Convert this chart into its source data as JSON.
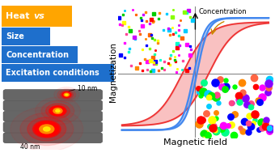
{
  "heat_vs_label": "Heat vs",
  "items": [
    "Size",
    "Concentration",
    "Excitation conditions"
  ],
  "orange_color": "#FFA500",
  "blue_color": "#1E6FCC",
  "size_label_10nm": "10 nm",
  "size_label_40nm": "40 nm",
  "xlabel": "Magnetic field",
  "ylabel": "Magnetization",
  "concentration_label": "Concentration",
  "bg_color": "#FFFFFF",
  "red_loop_color": "#EE3333",
  "red_loop_alpha": 0.3,
  "blue_curve_color": "#4488EE",
  "small_dot_colors": [
    "#FF00FF",
    "#FFFF00",
    "#00CC00",
    "#FF0000",
    "#00CCFF",
    "#FF8800",
    "#CC00FF",
    "#0000FF",
    "#FF4499",
    "#88FF00",
    "#FF6600",
    "#00FFCC"
  ],
  "large_dot_colors": [
    "#FF0000",
    "#00EE00",
    "#0000FF",
    "#FF00FF",
    "#00CCFF",
    "#FFFF00",
    "#FF8800",
    "#00FF88",
    "#8800FF",
    "#FF4488",
    "#00FF00",
    "#FF6644"
  ]
}
